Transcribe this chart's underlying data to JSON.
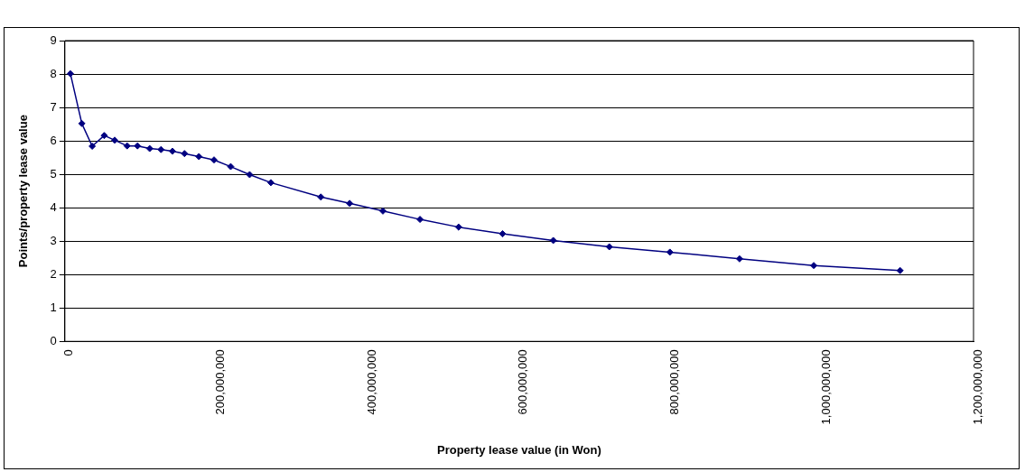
{
  "chart_data": {
    "type": "line",
    "xlabel": "Property lease value (in Won)",
    "ylabel": "Points/property lease value",
    "x": [
      7300000,
      22400000,
      36100000,
      52000000,
      65800000,
      82200000,
      95900000,
      112000000,
      127000000,
      142000000,
      158000000,
      177000000,
      197000000,
      219000000,
      244000000,
      272000000,
      338000000,
      376000000,
      420000000,
      469000000,
      520000000,
      578000000,
      645000000,
      719000000,
      799000000,
      891000000,
      989000000,
      1103000000
    ],
    "series": [
      {
        "color": "#000080",
        "values": [
          8.01,
          6.52,
          5.84,
          6.16,
          6.02,
          5.85,
          5.85,
          5.77,
          5.74,
          5.69,
          5.62,
          5.53,
          5.43,
          5.23,
          4.99,
          4.75,
          4.32,
          4.13,
          3.9,
          3.65,
          3.42,
          3.22,
          3.02,
          2.83,
          2.67,
          2.47,
          2.27,
          2.12
        ]
      }
    ],
    "xlim": [
      0,
      1200000000
    ],
    "xticks": [
      0,
      {
        "value": 200000000,
        "label": "200,000,000"
      },
      {
        "value": 400000000,
        "label": "400,000,000"
      },
      {
        "value": 600000000,
        "label": "600,000,000"
      },
      {
        "value": 800000000,
        "label": "800,000,000"
      },
      {
        "value": 1000000000,
        "label": "1,000,000,000"
      },
      {
        "value": 1200000000,
        "label": "1,200,000,000"
      }
    ],
    "ylim": [
      0,
      9
    ],
    "yticks": [
      0,
      1,
      2,
      3,
      4,
      5,
      6,
      7,
      8,
      9
    ],
    "grid": "y",
    "legend": false,
    "marker": "diamond",
    "line_style": "solid"
  }
}
